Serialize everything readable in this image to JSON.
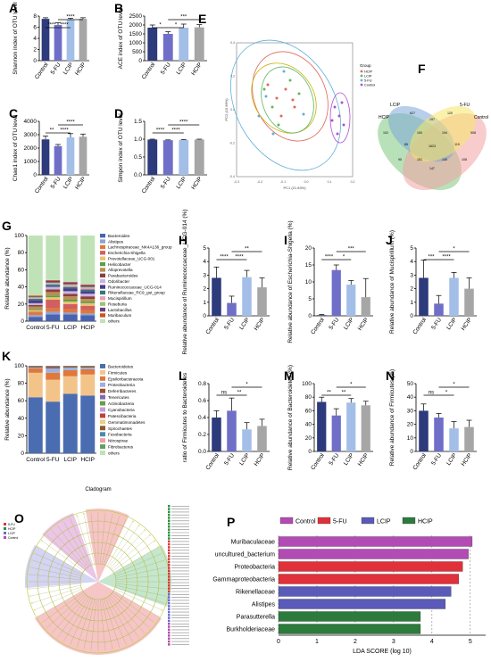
{
  "colors": {
    "control": "#2d3a7c",
    "fu": "#6f6fc8",
    "lcip": "#a3bfe8",
    "hcip": "#a6a6a6"
  },
  "groups": [
    "Control",
    "5-FU",
    "LCIP",
    "HCIP"
  ],
  "panels": {
    "A": {
      "letter": "A",
      "ylabel": "Shannon index of OTU level",
      "ticks": [
        "0",
        "2",
        "4",
        "6",
        "8"
      ],
      "ymax": 8,
      "values": [
        7.5,
        6.4,
        7.3,
        7.5
      ],
      "errors": [
        0.2,
        0.4,
        0.3,
        0.2
      ],
      "sig": [
        "****",
        "****",
        "****"
      ]
    },
    "B": {
      "letter": "B",
      "ylabel": "ACE index of OTU level",
      "ticks": [
        "0",
        "500",
        "1000",
        "1500",
        "2000",
        "2500"
      ],
      "ymax": 2500,
      "values": [
        1850,
        1500,
        1850,
        1870
      ],
      "errors": [
        150,
        120,
        200,
        150
      ],
      "sig": [
        "*",
        "*",
        "***"
      ]
    },
    "C": {
      "letter": "C",
      "ylabel": "Chao1 index of OTU level",
      "ticks": [
        "0",
        "1000",
        "2000",
        "3000",
        "4000"
      ],
      "ymax": 4000,
      "values": [
        2650,
        2150,
        2800,
        2850
      ],
      "errors": [
        250,
        120,
        280,
        200
      ],
      "sig": [
        "**",
        "****",
        "****"
      ]
    },
    "D": {
      "letter": "D",
      "ylabel": "Simpon index of OTU level",
      "ticks": [
        "0.0",
        "0.5",
        "1.0",
        "1.5"
      ],
      "ymax": 1.5,
      "values": [
        0.99,
        0.97,
        0.98,
        0.99
      ],
      "errors": [
        0.01,
        0.01,
        0.01,
        0.01
      ],
      "sig": [
        "****",
        "****",
        "****"
      ]
    },
    "H": {
      "letter": "H",
      "ylabel": "Relative abundance of Ruminococcaceae_UCG-014 (%)",
      "ticks": [
        "0",
        "1",
        "2",
        "3",
        "4",
        "5"
      ],
      "ymax": 5,
      "values": [
        2.8,
        0.95,
        2.85,
        2.1
      ],
      "errors": [
        0.8,
        0.5,
        0.5,
        0.7
      ],
      "sig": [
        "****",
        "****",
        "**"
      ]
    },
    "I": {
      "letter": "I",
      "ylabel": "Relative abundance of Escherichia-Shigella (%)",
      "ticks": [
        "0",
        "5",
        "10",
        "15",
        "20"
      ],
      "ymax": 20,
      "values": [
        0.2,
        13.5,
        9.2,
        5.5
      ],
      "errors": [
        0.2,
        1.5,
        1.2,
        5.5
      ],
      "sig": [
        "****",
        "*",
        "***"
      ]
    },
    "J": {
      "letter": "J",
      "ylabel": "Relative abundance of Mucispirillum (%)",
      "ticks": [
        "0",
        "1",
        "2",
        "3",
        "4",
        "5"
      ],
      "ymax": 5,
      "values": [
        2.8,
        0.9,
        2.8,
        2.0
      ],
      "errors": [
        1.3,
        0.6,
        0.4,
        0.8
      ],
      "sig": [
        "***",
        "****",
        "*"
      ]
    },
    "L": {
      "letter": "L",
      "ylabel": "ratio of Firmicutes to Bacteroidetes",
      "ticks": [
        "0.0",
        "0.2",
        "0.4",
        "0.6",
        "0.8"
      ],
      "ymax": 0.8,
      "values": [
        0.4,
        0.48,
        0.26,
        0.3
      ],
      "errors": [
        0.08,
        0.15,
        0.08,
        0.08
      ],
      "sig": [
        "ns",
        "**",
        "*"
      ]
    },
    "M": {
      "letter": "M",
      "ylabel": "Relative abundance of Bacteroidetes (%)",
      "ticks": [
        "0",
        "20",
        "40",
        "60",
        "80",
        "100"
      ],
      "ymax": 100,
      "values": [
        73,
        53,
        72,
        68
      ],
      "errors": [
        7,
        10,
        6,
        6
      ],
      "sig": [
        "**",
        "**",
        "*"
      ]
    },
    "N": {
      "letter": "N",
      "ylabel": "Relative abundance of Firmicutes (%)",
      "ticks": [
        "0",
        "10",
        "20",
        "30",
        "40",
        "50"
      ],
      "ymax": 50,
      "values": [
        30,
        25,
        17,
        18
      ],
      "errors": [
        5,
        3,
        5,
        5
      ],
      "sig": [
        "ns",
        "*",
        "*"
      ]
    }
  },
  "stacked": {
    "G": {
      "letter": "G",
      "ylabel": "Relative abundance (%)",
      "ticks": [
        "0",
        "20",
        "40",
        "60",
        "80",
        "100"
      ],
      "legend": [
        "Bacteroides",
        "Alistipes",
        "Lachnospiraceae_NK4A136_group",
        "Escherichia-Shigella",
        "Prevotellaceae_UCG-001",
        "Helicobacter",
        "Alloprevotella",
        "Parabacteroides",
        "Odoribacter",
        "Ruminococcaceae_UCG-014",
        "Rikenellaceae_RC9_gut_group",
        "Mucispirillum",
        "Roseburia",
        "Lactobacillus",
        "Muribaculum",
        "others"
      ],
      "colors": [
        "#4a63b0",
        "#8ba4d4",
        "#e0783a",
        "#d25f5f",
        "#e8c470",
        "#5d9c4c",
        "#b89050",
        "#8b3f3f",
        "#c9b4e0",
        "#4b3b8c",
        "#2f7a7a",
        "#e8a0b8",
        "#9fc26f",
        "#6d3f7e",
        "#d05020",
        "#bfe3b6"
      ],
      "values": [
        [
          5,
          2,
          3,
          1,
          2,
          1,
          3,
          2,
          2,
          3,
          2,
          1,
          1,
          1,
          1,
          70
        ],
        [
          8,
          3,
          4,
          10,
          3,
          2,
          4,
          3,
          3,
          1,
          2,
          1,
          1,
          2,
          1,
          52
        ],
        [
          8,
          2,
          4,
          6,
          3,
          2,
          4,
          3,
          3,
          3,
          2,
          2,
          1,
          2,
          1,
          54
        ],
        [
          7,
          2,
          4,
          5,
          3,
          2,
          3,
          3,
          3,
          3,
          2,
          2,
          1,
          2,
          1,
          57
        ]
      ]
    },
    "K": {
      "letter": "K",
      "ylabel": "Relative abundance (%)",
      "ticks": [
        "0",
        "20",
        "40",
        "60",
        "80",
        "100"
      ],
      "legend": [
        "Bacteroidetes",
        "Firmicutes",
        "Epsilonbacteraeota",
        "Proteobacteria",
        "Deferribacteres",
        "Tenericutes",
        "Actinobacteria",
        "Cyanobacteria",
        "Patescibacteria",
        "Gemmatimonadetes",
        "Spirochaetes",
        "Fusobacteria",
        "Nitrospirae",
        "Fibrobacteres",
        "others"
      ],
      "colors": [
        "#4a6cb0",
        "#f2c48a",
        "#e0783a",
        "#9db0e0",
        "#a05028",
        "#7d6bb0",
        "#6a9e4a",
        "#c0a0d8",
        "#c04040",
        "#e8d080",
        "#8b5a2b",
        "#4b8ab0",
        "#f0a0a0",
        "#60a060",
        "#bfe3b6"
      ],
      "values": [
        [
          64,
          28,
          5,
          1,
          1,
          0.5,
          0.5
        ],
        [
          59,
          25,
          8,
          5,
          1.5,
          1,
          0.5
        ],
        [
          68,
          20,
          7,
          3,
          1,
          0.5,
          0.5
        ],
        [
          66,
          24,
          6,
          2,
          1,
          0.5,
          0.5
        ]
      ]
    }
  },
  "pcoa": {
    "letter": "E",
    "xlabel": "PC1 (21.83%)",
    "ylabel": "PC2 (15.96%)",
    "legend_title": "Group",
    "legend": [
      "HCIP",
      "LCIP",
      "5-FU",
      "Control"
    ],
    "legend_colors": [
      "#e0665a",
      "#5cb85c",
      "#5fb0d8",
      "#b050d8"
    ],
    "xticks": [
      "-0.3",
      "-0.2",
      "-0.1",
      "0.0",
      "0.1",
      "0.2"
    ],
    "yticks": [
      "-0.4",
      "-0.2",
      "0.0",
      "0.2",
      "0.4"
    ]
  },
  "venn": {
    "letter": "F",
    "labels": [
      "LCIP",
      "5-FU",
      "HCIP",
      "Control"
    ],
    "numbers": [
      "627",
      "120",
      "102",
      "508",
      "197",
      "100",
      "1623",
      "194",
      "85",
      "119",
      "151",
      "140",
      "147",
      "95",
      "108"
    ]
  },
  "cladogram": {
    "letter": "O",
    "title": "Cladogram",
    "legend": [
      "5-FU",
      "HCIP",
      "LCIP",
      "Control"
    ],
    "legend_colors": [
      "#d33a3a",
      "#2f8f3f",
      "#6b6bd0",
      "#b050a8"
    ]
  },
  "lda": {
    "letter": "P",
    "xlabel": "LDA SCORE (log 10)",
    "ticks": [
      "0",
      "1",
      "2",
      "3",
      "4",
      "5"
    ],
    "groups": [
      "Control",
      "5-FU",
      "LCIP",
      "HCIP"
    ],
    "group_colors": [
      "#b24bb4",
      "#e0303a",
      "#5a5ab8",
      "#2c7a3c"
    ],
    "taxa": [
      "Muribaculaceae",
      "uncultured_bacterium",
      "Proteobacteria",
      "Gammaproteobacteria",
      "Rikenellaceae",
      "Alistipes",
      "Parasutterella",
      "Burkholderiaceae"
    ],
    "values": [
      5.05,
      4.95,
      4.8,
      4.7,
      4.5,
      4.35,
      3.7,
      3.7
    ],
    "taxa_groups": [
      0,
      0,
      1,
      1,
      2,
      2,
      3,
      3
    ]
  }
}
